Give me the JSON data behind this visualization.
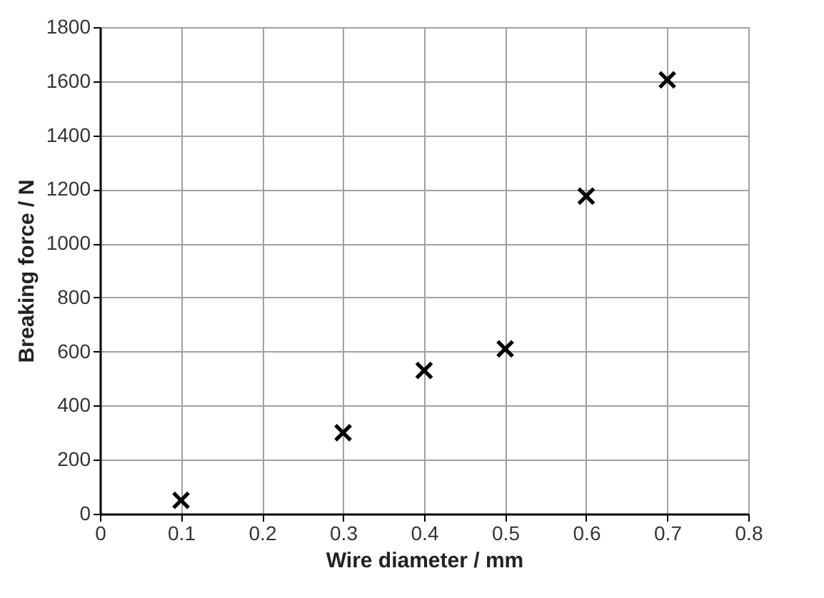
{
  "chart_data": {
    "type": "scatter",
    "xlabel": "Wire diameter / mm",
    "ylabel": "Breaking force / N",
    "x": [
      0.1,
      0.3,
      0.4,
      0.5,
      0.6,
      0.7
    ],
    "series": [
      {
        "color": "#000000",
        "values": [
          50,
          300,
          530,
          610,
          1175,
          1605
        ]
      }
    ],
    "xlim": [
      0,
      0.8
    ],
    "xticks": [
      0,
      0.1,
      0.2,
      0.3,
      0.4,
      0.5,
      0.6,
      0.7,
      0.8
    ],
    "ylim": [
      0,
      1800
    ],
    "yticks": [
      0,
      200,
      400,
      600,
      800,
      1000,
      1200,
      1400,
      1600,
      1800
    ],
    "grid": true,
    "marker": "cross",
    "legend": false
  }
}
